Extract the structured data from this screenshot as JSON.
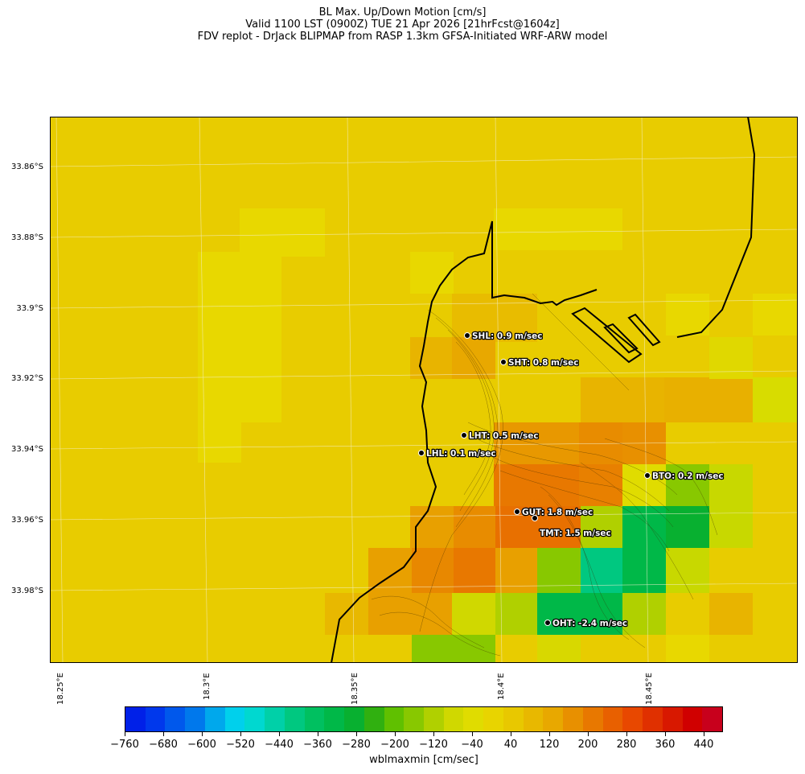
{
  "titles": {
    "line1": "BL Max. Up/Down Motion [cm/s]",
    "line2": "Valid 1100 LST (0900Z) TUE 21 Apr 2026 [21hrFcst@1604z]",
    "line3": "FDV replot - DrJack BLIPMAP from RASP 1.3km GFSA-Initiated WRF-ARW model"
  },
  "lat_labels": [
    "33.86°S",
    "33.88°S",
    "33.9°S",
    "33.92°S",
    "33.94°S",
    "33.96°S",
    "33.98°S"
  ],
  "lon_labels": [
    "18.25°E",
    "18.3°E",
    "18.35°E",
    "18.4°E",
    "18.45°E"
  ],
  "sites": [
    {
      "id": "SHL",
      "label": "SHL: 0.9 m/sec"
    },
    {
      "id": "SHT",
      "label": "SHT: 0.8 m/sec"
    },
    {
      "id": "LHT",
      "label": "LHT: 0.5 m/sec"
    },
    {
      "id": "LHL",
      "label": "LHL: 0.1 m/sec"
    },
    {
      "id": "BTO",
      "label": "BTO: 0.2 m/sec"
    },
    {
      "id": "GUT",
      "label": "GUT: 1.8 m/sec"
    },
    {
      "id": "TMT",
      "label": "TMT: 1.5 m/sec"
    },
    {
      "id": "OHT",
      "label": "OHT: -2.4 m/sec"
    }
  ],
  "colorbar": {
    "label": "wblmaxmin [cm/sec]",
    "ticks": [
      "−760",
      "−680",
      "−600",
      "−520",
      "−440",
      "−360",
      "−280",
      "−200",
      "−120",
      "−40",
      "40",
      "120",
      "200",
      "280",
      "360",
      "440"
    ],
    "colors": [
      "#0020e8",
      "#0038ec",
      "#0058ec",
      "#0078ec",
      "#00a8ec",
      "#00d0ec",
      "#00d8d0",
      "#00d0a8",
      "#00c880",
      "#00c060",
      "#00b848",
      "#08b030",
      "#30b010",
      "#60c000",
      "#88c800",
      "#b0d000",
      "#d0d800",
      "#e0dc00",
      "#e8d400",
      "#e8c800",
      "#e8b800",
      "#e8a800",
      "#e89000",
      "#e87800",
      "#e86000",
      "#e84800",
      "#e03000",
      "#d81800",
      "#d00000",
      "#c8001c"
    ],
    "range": [
      -760,
      480
    ]
  },
  "map": {
    "background_color": "#e8cc00",
    "coastline_color": "#000000"
  }
}
